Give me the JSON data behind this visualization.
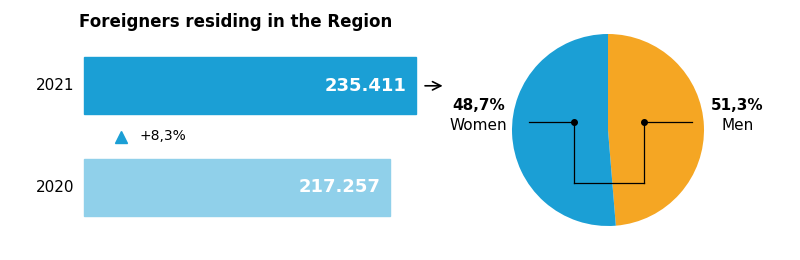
{
  "title": "Foreigners residing in the Region",
  "bar_2021_value": 235411,
  "bar_2020_value": 217257,
  "bar_2021_label": "235.411",
  "bar_2020_label": "217.257",
  "bar_2021_color": "#1b9fd5",
  "bar_2020_color": "#90d0ea",
  "year_2021": "2021",
  "year_2020": "2020",
  "growth_label": "+8,3%",
  "growth_color": "#1b9fd5",
  "women_pct": 48.7,
  "men_pct": 51.3,
  "pie_color_women": "#f5a623",
  "pie_color_men": "#1b9fd5",
  "bg_color": "#ffffff"
}
